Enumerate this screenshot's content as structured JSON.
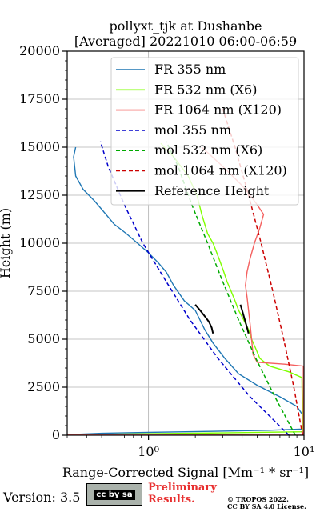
{
  "chart_data": {
    "type": "line",
    "title": "pollyxt_tjk at Dushanbe",
    "subtitle": "[Averaged] 20221010 06:00-06:59",
    "xlabel": "Range-Corrected Signal [Mm⁻¹ * sr⁻¹]",
    "ylabel": "Height (m)",
    "xscale": "log",
    "xlim": [
      0.3,
      10
    ],
    "ylim": [
      0,
      20000
    ],
    "xticks": [
      {
        "v": 1,
        "label": "10⁰"
      },
      {
        "v": 10,
        "label": "10¹"
      }
    ],
    "yticks": [
      0,
      2500,
      5000,
      7500,
      10000,
      12500,
      15000,
      17500,
      20000
    ],
    "grid": true,
    "legend": "top-right",
    "series": [
      {
        "name": "FR 355 nm",
        "color": "#1f77b4",
        "style": "solid",
        "points": [
          [
            0.35,
            50
          ],
          [
            0.5,
            100
          ],
          [
            1.0,
            150
          ],
          [
            2.5,
            200
          ],
          [
            6.0,
            260
          ],
          [
            9.8,
            320
          ],
          [
            9.9,
            1000
          ],
          [
            9.0,
            1500
          ],
          [
            7.0,
            2000
          ],
          [
            5.0,
            2600
          ],
          [
            3.8,
            3200
          ],
          [
            3.1,
            4000
          ],
          [
            2.6,
            4800
          ],
          [
            2.3,
            5500
          ],
          [
            2.0,
            6500
          ],
          [
            1.7,
            7000
          ],
          [
            1.45,
            7800
          ],
          [
            1.3,
            8500
          ],
          [
            1.15,
            9000
          ],
          [
            1.0,
            9500
          ],
          [
            0.85,
            10000
          ],
          [
            0.72,
            10500
          ],
          [
            0.6,
            11000
          ],
          [
            0.52,
            11600
          ],
          [
            0.45,
            12200
          ],
          [
            0.38,
            12800
          ],
          [
            0.34,
            13500
          ],
          [
            0.33,
            14500
          ],
          [
            0.34,
            15000
          ]
        ]
      },
      {
        "name": "FR 532 nm (X6)",
        "color": "#7fff00",
        "style": "solid",
        "points": [
          [
            0.3,
            30
          ],
          [
            3.0,
            120
          ],
          [
            9.8,
            180
          ],
          [
            9.7,
            3000
          ],
          [
            8.0,
            3300
          ],
          [
            6.0,
            3600
          ],
          [
            5.2,
            4000
          ],
          [
            4.9,
            4500
          ],
          [
            4.6,
            5000
          ],
          [
            4.4,
            5500
          ],
          [
            4.1,
            6000
          ],
          [
            3.8,
            6500
          ],
          [
            3.6,
            7000
          ],
          [
            3.4,
            7500
          ],
          [
            3.2,
            8000
          ],
          [
            3.05,
            8500
          ],
          [
            2.9,
            9000
          ],
          [
            2.75,
            9500
          ],
          [
            2.6,
            10000
          ],
          [
            2.4,
            10500
          ],
          [
            2.2,
            11500
          ],
          [
            2.05,
            12500
          ],
          [
            1.8,
            13500
          ],
          [
            1.45,
            14500
          ],
          [
            1.2,
            15200
          ]
        ]
      },
      {
        "name": "FR 1064 nm (X120)",
        "color": "#f4605f",
        "style": "solid",
        "points": [
          [
            0.3,
            30
          ],
          [
            9.9,
            60
          ],
          [
            9.9,
            3600
          ],
          [
            7.5,
            3700
          ],
          [
            5.0,
            3800
          ],
          [
            4.7,
            4200
          ],
          [
            4.6,
            5000
          ],
          [
            4.5,
            5800
          ],
          [
            4.4,
            6500
          ],
          [
            4.3,
            7200
          ],
          [
            4.2,
            7800
          ],
          [
            4.3,
            8500
          ],
          [
            4.5,
            9200
          ],
          [
            4.8,
            10000
          ],
          [
            5.2,
            10800
          ],
          [
            5.5,
            11500
          ],
          [
            5.0,
            12000
          ],
          [
            4.5,
            12500
          ],
          [
            4.0,
            13000
          ],
          [
            3.0,
            14000
          ],
          [
            2.2,
            15000
          ]
        ]
      },
      {
        "name": "mol 355 nm",
        "color": "#0000cc",
        "style": "dashed",
        "points": [
          [
            8.0,
            0
          ],
          [
            4.5,
            2000
          ],
          [
            2.8,
            4000
          ],
          [
            1.85,
            6000
          ],
          [
            1.3,
            8000
          ],
          [
            0.92,
            10000
          ],
          [
            0.7,
            12000
          ],
          [
            0.55,
            14000
          ],
          [
            0.49,
            15300
          ]
        ]
      },
      {
        "name": "mol 532 nm (X6)",
        "color": "#00aa00",
        "style": "dashed",
        "points": [
          [
            8.8,
            0
          ],
          [
            6.5,
            2000
          ],
          [
            4.9,
            4000
          ],
          [
            3.8,
            6000
          ],
          [
            3.0,
            8000
          ],
          [
            2.4,
            10000
          ],
          [
            1.9,
            12000
          ],
          [
            1.55,
            14000
          ],
          [
            1.3,
            15300
          ]
        ]
      },
      {
        "name": "mol 1064 nm (X120)",
        "color": "#cc0000",
        "style": "dashed",
        "points": [
          [
            9.8,
            0
          ],
          [
            8.6,
            2500
          ],
          [
            7.4,
            5000
          ],
          [
            6.3,
            7500
          ],
          [
            5.3,
            10000
          ],
          [
            4.4,
            12500
          ],
          [
            3.6,
            15000
          ],
          [
            3.0,
            17000
          ]
        ]
      },
      {
        "name": "Reference Height",
        "color": "#000000",
        "style": "solid",
        "points_a": [
          [
            2.0,
            6800
          ],
          [
            2.15,
            6500
          ],
          [
            2.3,
            6200
          ],
          [
            2.45,
            5900
          ],
          [
            2.55,
            5600
          ],
          [
            2.6,
            5300
          ]
        ],
        "points_b": [
          [
            3.9,
            6800
          ],
          [
            4.0,
            6500
          ],
          [
            4.1,
            6200
          ],
          [
            4.2,
            5900
          ],
          [
            4.3,
            5600
          ],
          [
            4.4,
            5300
          ]
        ]
      }
    ]
  },
  "footer": {
    "version": "Version: 3.5",
    "license_badge": "cc by sa",
    "preliminary_line1": "Preliminary",
    "preliminary_line2": "Results.",
    "copyright_line1": "© TROPOS 2022.",
    "copyright_line2": "CC BY SA 4.0 License."
  },
  "colors": {
    "preliminary": "#e83030",
    "grid": "#b0b0b0"
  }
}
